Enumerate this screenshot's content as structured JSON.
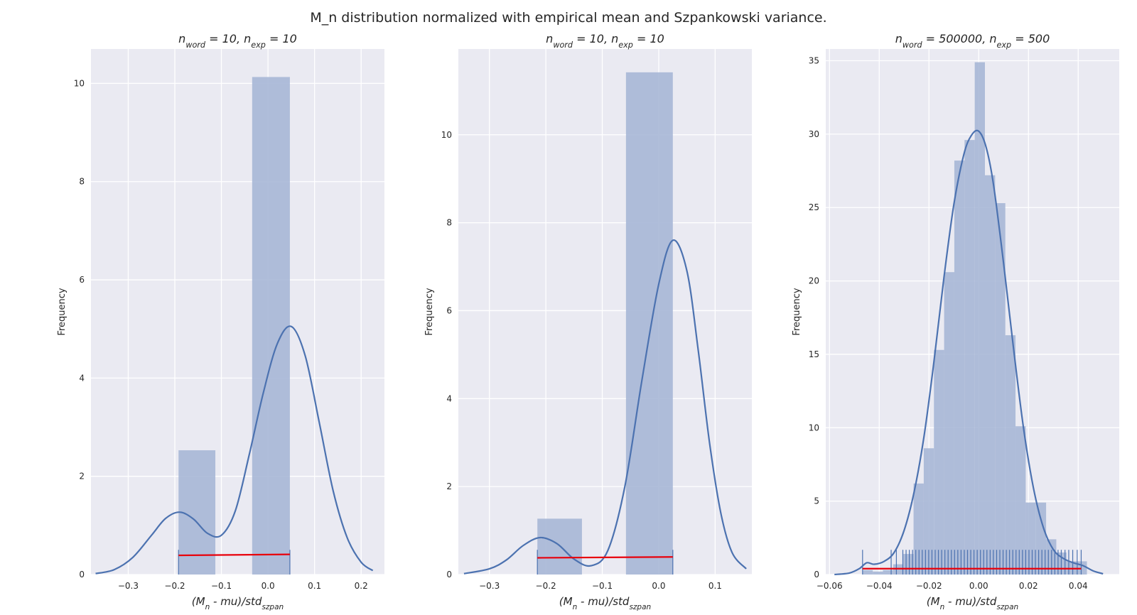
{
  "figure": {
    "suptitle": "M_n distribution normalized with empirical mean and Szpankowski variance."
  },
  "colors": {
    "axes_background": "#eaeaf2",
    "grid": "#ffffff",
    "bars": "#a7b7d6",
    "kde_line": "#4c72b0",
    "rug": "#4c72b0",
    "red_line": "#e8000b",
    "text": "#262626"
  },
  "chart_data": [
    {
      "type": "bar",
      "histogram_with_kde_and_rug": true,
      "title": "n_word = 10, n_exp = 10",
      "xlabel": "(M_n - mu)/std_szpan",
      "ylabel": "Frequency",
      "xlim": [
        -0.38,
        0.25
      ],
      "ylim": [
        0,
        10.7
      ],
      "xticks": [
        -0.3,
        -0.2,
        -0.1,
        0.0,
        0.1,
        0.2
      ],
      "xtick_labels": [
        "−0.3",
        "−0.2",
        "−0.1",
        "0.0",
        "0.1",
        "0.2"
      ],
      "yticks": [
        0,
        2,
        4,
        6,
        8,
        10
      ],
      "ytick_labels": [
        "0",
        "2",
        "4",
        "6",
        "8",
        "10"
      ],
      "bins": [
        {
          "x0": -0.192,
          "x1": -0.113,
          "value": 2.53
        },
        {
          "x0": -0.113,
          "x1": -0.034,
          "value": 0
        },
        {
          "x0": -0.034,
          "x1": 0.047,
          "value": 10.13
        }
      ],
      "kde": {
        "x": [
          -0.37,
          -0.33,
          -0.29,
          -0.25,
          -0.22,
          -0.19,
          -0.16,
          -0.13,
          -0.1,
          -0.07,
          -0.04,
          -0.01,
          0.02,
          0.05,
          0.08,
          0.11,
          0.14,
          0.17,
          0.2,
          0.225
        ],
        "y": [
          0.02,
          0.1,
          0.35,
          0.8,
          1.14,
          1.27,
          1.13,
          0.84,
          0.8,
          1.3,
          2.45,
          3.7,
          4.7,
          5.05,
          4.45,
          3.1,
          1.7,
          0.75,
          0.25,
          0.08
        ]
      },
      "rug": [
        -0.192,
        0.047
      ],
      "red_line": {
        "x": [
          -0.192,
          0.047
        ],
        "y": [
          0.39,
          0.41
        ]
      }
    },
    {
      "type": "bar",
      "histogram_with_kde_and_rug": true,
      "title": "n_word = 10, n_exp = 10",
      "xlabel": "(M_n - mu)/std_szpan",
      "ylabel": "Frequency",
      "xlim": [
        -0.355,
        0.165
      ],
      "ylim": [
        0,
        11.95
      ],
      "xticks": [
        -0.3,
        -0.2,
        -0.1,
        0.0,
        0.1
      ],
      "xtick_labels": [
        "−0.3",
        "−0.2",
        "−0.1",
        "0.0",
        "0.1"
      ],
      "yticks": [
        0,
        2,
        4,
        6,
        8,
        10
      ],
      "ytick_labels": [
        "0",
        "2",
        "4",
        "6",
        "8",
        "10"
      ],
      "bins": [
        {
          "x0": -0.215,
          "x1": -0.136,
          "value": 1.27
        },
        {
          "x0": -0.136,
          "x1": -0.058,
          "value": 0
        },
        {
          "x0": -0.058,
          "x1": 0.025,
          "value": 11.42
        }
      ],
      "kde": {
        "x": [
          -0.345,
          -0.3,
          -0.27,
          -0.24,
          -0.21,
          -0.18,
          -0.15,
          -0.12,
          -0.09,
          -0.06,
          -0.03,
          0.0,
          0.025,
          0.05,
          0.07,
          0.09,
          0.11,
          0.13,
          0.155
        ],
        "y": [
          0.02,
          0.13,
          0.33,
          0.66,
          0.84,
          0.7,
          0.35,
          0.2,
          0.55,
          2.0,
          4.4,
          6.6,
          7.6,
          6.9,
          5.1,
          3.0,
          1.4,
          0.5,
          0.13
        ]
      },
      "rug": [
        -0.215,
        0.025
      ],
      "red_line": {
        "x": [
          -0.215,
          0.025
        ],
        "y": [
          0.38,
          0.4
        ]
      }
    },
    {
      "type": "bar",
      "histogram_with_kde_and_rug": true,
      "title": "n_word = 500000, n_exp = 500",
      "xlabel": "(M_n - mu)/std_szpan",
      "ylabel": "Frequency",
      "xlim": [
        -0.0615,
        0.0565
      ],
      "ylim": [
        0,
        35.8
      ],
      "xticks": [
        -0.06,
        -0.04,
        -0.02,
        0.0,
        0.02,
        0.04
      ],
      "xtick_labels": [
        "−0.06",
        "−0.04",
        "−0.02",
        "0.00",
        "0.02",
        "0.04"
      ],
      "yticks": [
        0,
        5,
        10,
        15,
        20,
        25,
        30,
        35
      ],
      "ytick_labels": [
        "0",
        "5",
        "10",
        "15",
        "20",
        "25",
        "30",
        "35"
      ],
      "bins": [
        {
          "x0": -0.0467,
          "x1": -0.0426,
          "value": 0.3
        },
        {
          "x0": -0.0426,
          "x1": -0.0385,
          "value": 0.2
        },
        {
          "x0": -0.0385,
          "x1": -0.0344,
          "value": 0.3
        },
        {
          "x0": -0.0344,
          "x1": -0.0303,
          "value": 0.7
        },
        {
          "x0": -0.0303,
          "x1": -0.0262,
          "value": 1.4
        },
        {
          "x0": -0.0262,
          "x1": -0.0221,
          "value": 6.2
        },
        {
          "x0": -0.0221,
          "x1": -0.018,
          "value": 8.6
        },
        {
          "x0": -0.018,
          "x1": -0.0139,
          "value": 15.3
        },
        {
          "x0": -0.0139,
          "x1": -0.0098,
          "value": 20.6
        },
        {
          "x0": -0.0098,
          "x1": -0.0057,
          "value": 28.2
        },
        {
          "x0": -0.0057,
          "x1": -0.0016,
          "value": 29.6
        },
        {
          "x0": -0.0016,
          "x1": 0.0025,
          "value": 34.9
        },
        {
          "x0": 0.0025,
          "x1": 0.0066,
          "value": 27.2
        },
        {
          "x0": 0.0066,
          "x1": 0.0107,
          "value": 25.3
        },
        {
          "x0": 0.0107,
          "x1": 0.0148,
          "value": 16.3
        },
        {
          "x0": 0.0148,
          "x1": 0.0189,
          "value": 10.1
        },
        {
          "x0": 0.0189,
          "x1": 0.023,
          "value": 4.9
        },
        {
          "x0": 0.023,
          "x1": 0.0271,
          "value": 4.9
        },
        {
          "x0": 0.0271,
          "x1": 0.0312,
          "value": 2.4
        },
        {
          "x0": 0.0312,
          "x1": 0.0353,
          "value": 1.5
        },
        {
          "x0": 0.0353,
          "x1": 0.0394,
          "value": 0.9
        },
        {
          "x0": 0.0394,
          "x1": 0.0435,
          "value": 0.9
        }
      ],
      "kde": {
        "x": [
          -0.058,
          -0.052,
          -0.048,
          -0.045,
          -0.042,
          -0.038,
          -0.034,
          -0.03,
          -0.026,
          -0.022,
          -0.018,
          -0.014,
          -0.01,
          -0.006,
          -0.003,
          0.0,
          0.003,
          0.006,
          0.01,
          0.014,
          0.018,
          0.022,
          0.026,
          0.03,
          0.034,
          0.038,
          0.042,
          0.046,
          0.05
        ],
        "y": [
          0.0,
          0.1,
          0.4,
          0.8,
          0.7,
          0.9,
          1.5,
          3.0,
          5.6,
          9.4,
          14.5,
          20.2,
          25.2,
          28.6,
          29.9,
          30.2,
          29.1,
          26.5,
          21.2,
          15.4,
          10.0,
          5.9,
          3.2,
          1.7,
          1.1,
          0.8,
          0.6,
          0.25,
          0.05
        ]
      },
      "rug": [
        -0.0467,
        -0.0352,
        -0.0331,
        -0.0305,
        -0.0292,
        -0.0279,
        -0.0266,
        -0.0253,
        -0.024,
        -0.0227,
        -0.0214,
        -0.0201,
        -0.0188,
        -0.0175,
        -0.0162,
        -0.0149,
        -0.0136,
        -0.0123,
        -0.011,
        -0.0097,
        -0.0084,
        -0.0071,
        -0.0058,
        -0.0045,
        -0.0032,
        -0.0019,
        -0.0006,
        0.0007,
        0.002,
        0.0033,
        0.0046,
        0.0059,
        0.0072,
        0.0085,
        0.0098,
        0.0111,
        0.0124,
        0.0137,
        0.015,
        0.0163,
        0.0176,
        0.0189,
        0.0202,
        0.0215,
        0.0228,
        0.0241,
        0.0254,
        0.0267,
        0.028,
        0.0293,
        0.0306,
        0.0319,
        0.0332,
        0.0347,
        0.0362,
        0.0378,
        0.0396,
        0.0412
      ],
      "red_line": {
        "x": [
          -0.0467,
          0.0412
        ],
        "y": [
          0.4,
          0.4
        ]
      }
    }
  ]
}
